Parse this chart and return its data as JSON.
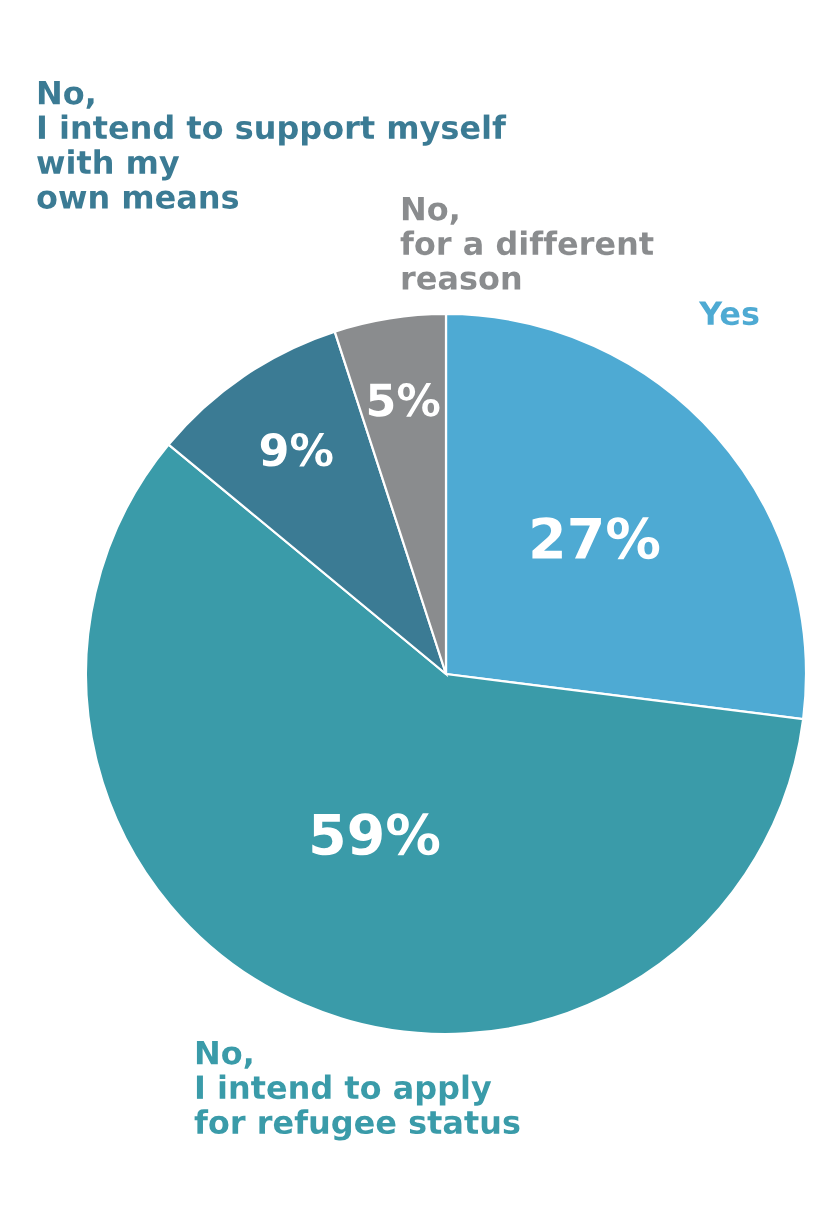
{
  "chart_data": {
    "type": "pie",
    "categories": [
      "Yes",
      "No,\nI intend to apply\nfor refugee status",
      "No,\nI intend to support myself\nwith my\nown means",
      "No,\nfor a different\nreason"
    ],
    "values": [
      27,
      59,
      9,
      5
    ],
    "value_labels": [
      "27%",
      "59%",
      "9%",
      "5%"
    ],
    "colors": [
      "#4eaad3",
      "#3a9ba9",
      "#3b7b94",
      "#8a8c8e"
    ]
  }
}
